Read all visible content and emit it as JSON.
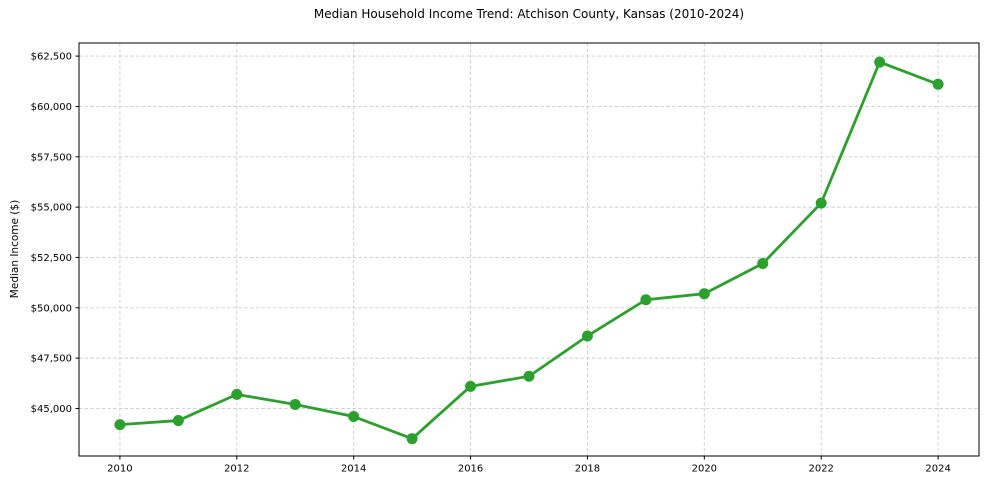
{
  "chart_data": {
    "type": "line",
    "title": "Median Household Income Trend: Atchison County, Kansas (2010-2024)",
    "xlabel": "",
    "ylabel": "Median Income ($)",
    "x": [
      2010,
      2011,
      2012,
      2013,
      2014,
      2015,
      2016,
      2017,
      2018,
      2019,
      2020,
      2021,
      2022,
      2023,
      2024
    ],
    "values": [
      44200,
      44400,
      45700,
      45200,
      44600,
      43500,
      46100,
      46600,
      48600,
      50400,
      50700,
      52200,
      55200,
      62200,
      61100
    ],
    "xticks": [
      2010,
      2012,
      2014,
      2016,
      2018,
      2020,
      2022,
      2024
    ],
    "xtick_labels": [
      "2010",
      "2012",
      "2014",
      "2016",
      "2018",
      "2020",
      "2022",
      "2024"
    ],
    "yticks": [
      45000,
      47500,
      50000,
      52500,
      55000,
      57500,
      60000,
      62500
    ],
    "ytick_labels": [
      "$45,000",
      "$47,500",
      "$50,000",
      "$52,500",
      "$55,000",
      "$57,500",
      "$60,000",
      "$62,500"
    ],
    "xlim": [
      2009.3,
      2024.7
    ],
    "ylim": [
      42640,
      63150
    ],
    "grid": true,
    "grid_style": "dashed",
    "legend": "none",
    "colors": {
      "line": "#2ca02c",
      "marker": "#2ca02c",
      "grid": "#cccccc",
      "axis": "#000000",
      "background": "#ffffff"
    }
  }
}
